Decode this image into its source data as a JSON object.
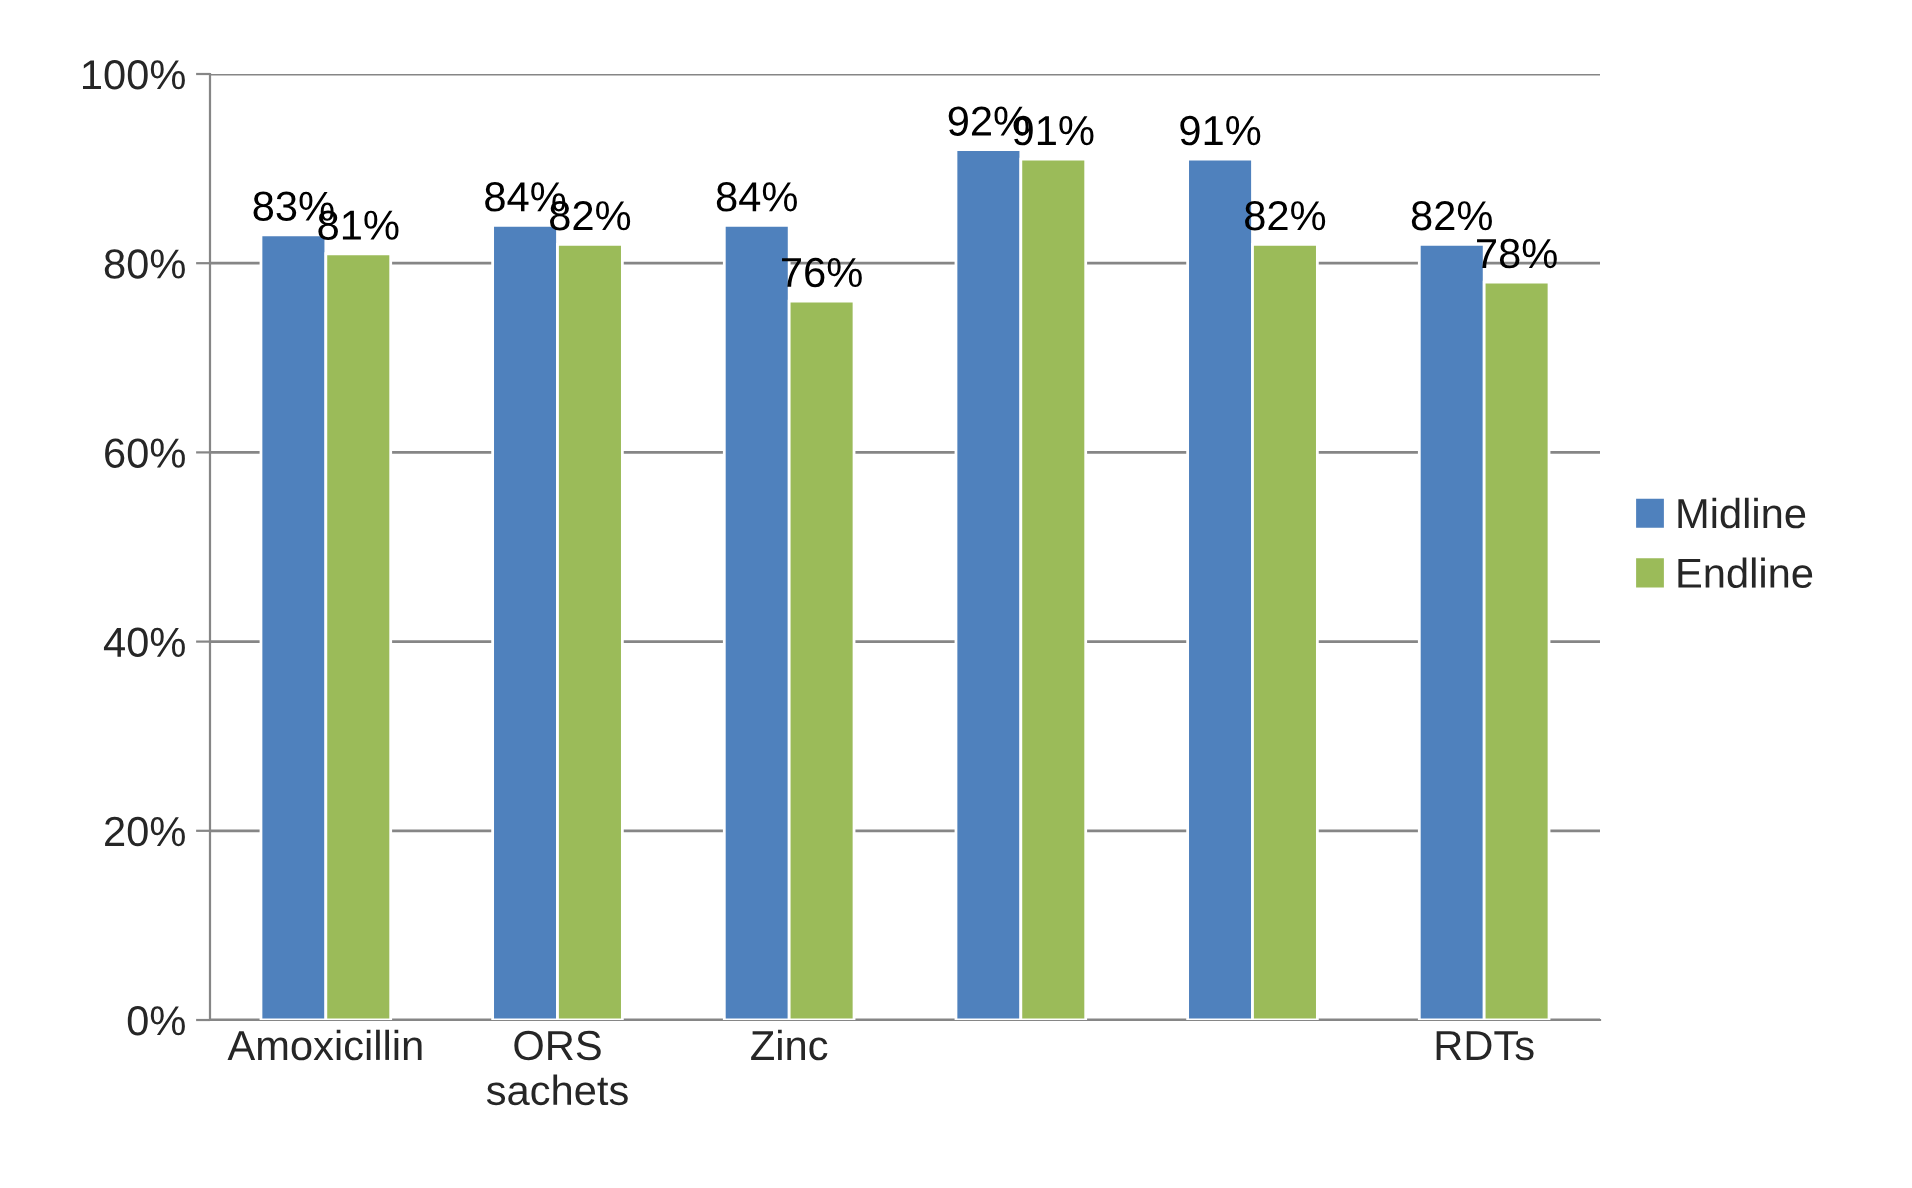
{
  "chart_data": {
    "type": "bar",
    "categories": [
      "Amoxicillin",
      "ORS\nsachets",
      "Zinc",
      null,
      null,
      "RDTs"
    ],
    "series": [
      {
        "name": "Midline",
        "color": "#4f81bd",
        "values": [
          83,
          84,
          84,
          92,
          91,
          82
        ],
        "value_labels": [
          "83%",
          "84%",
          "84%",
          "92%",
          "91%",
          "82%"
        ]
      },
      {
        "name": "Endline",
        "color": "#9bbb59",
        "values": [
          81,
          82,
          76,
          91,
          82,
          78
        ],
        "value_labels": [
          "81%",
          "82%",
          "76%",
          "91%",
          "82%",
          "78%"
        ]
      }
    ],
    "ylim": [
      0,
      100
    ],
    "yticks": [
      {
        "value": 0,
        "label": "0%"
      },
      {
        "value": 20,
        "label": "20%"
      },
      {
        "value": 40,
        "label": "40%"
      },
      {
        "value": 60,
        "label": "60%"
      },
      {
        "value": 80,
        "label": "80%"
      },
      {
        "value": 100,
        "label": "100%"
      }
    ],
    "grid": "y",
    "legend": "right"
  }
}
